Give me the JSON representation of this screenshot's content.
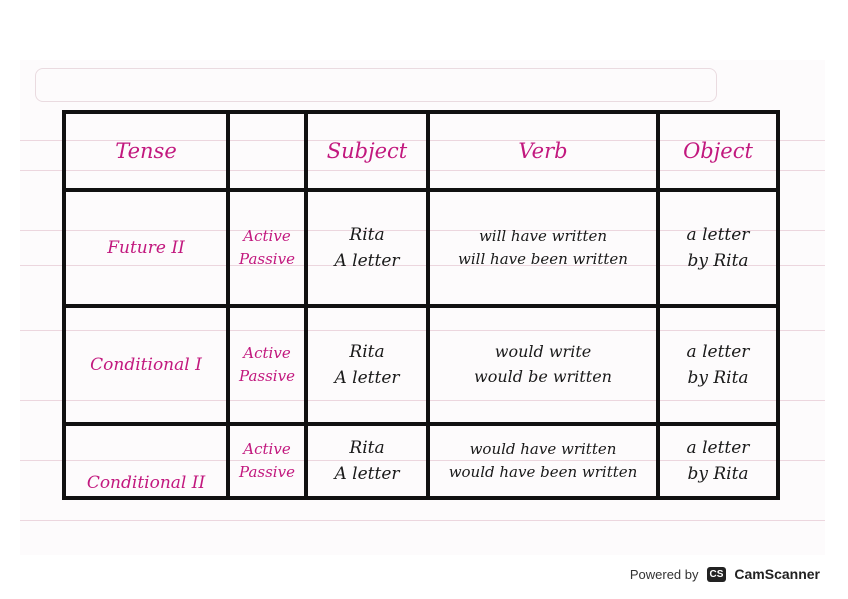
{
  "table": {
    "headers": [
      "Tense",
      "",
      "Subject",
      "Verb",
      "Object"
    ],
    "rows": [
      {
        "tense": "Future II",
        "voices": [
          "Active",
          "Passive"
        ],
        "subjects": [
          "Rita",
          "A letter"
        ],
        "verbs": [
          "will have written",
          "will have been written"
        ],
        "objects": [
          "a letter",
          "by Rita"
        ]
      },
      {
        "tense": "Conditional I",
        "voices": [
          "Active",
          "Passive"
        ],
        "subjects": [
          "Rita",
          "A letter"
        ],
        "verbs": [
          "would write",
          "would be written"
        ],
        "objects": [
          "a letter",
          "by Rita"
        ]
      },
      {
        "tense": "Conditional II",
        "voices": [
          "Active",
          "Passive"
        ],
        "subjects": [
          "Rita",
          "A letter"
        ],
        "verbs": [
          "would have written",
          "would have been written"
        ],
        "objects": [
          "a letter",
          "by Rita"
        ]
      }
    ]
  },
  "footer": {
    "powered_by": "Powered by",
    "logo": "CS",
    "brand": "CamScanner"
  },
  "colors": {
    "ink_pink": "#c2187e",
    "ink_black": "#1a1a1a"
  }
}
